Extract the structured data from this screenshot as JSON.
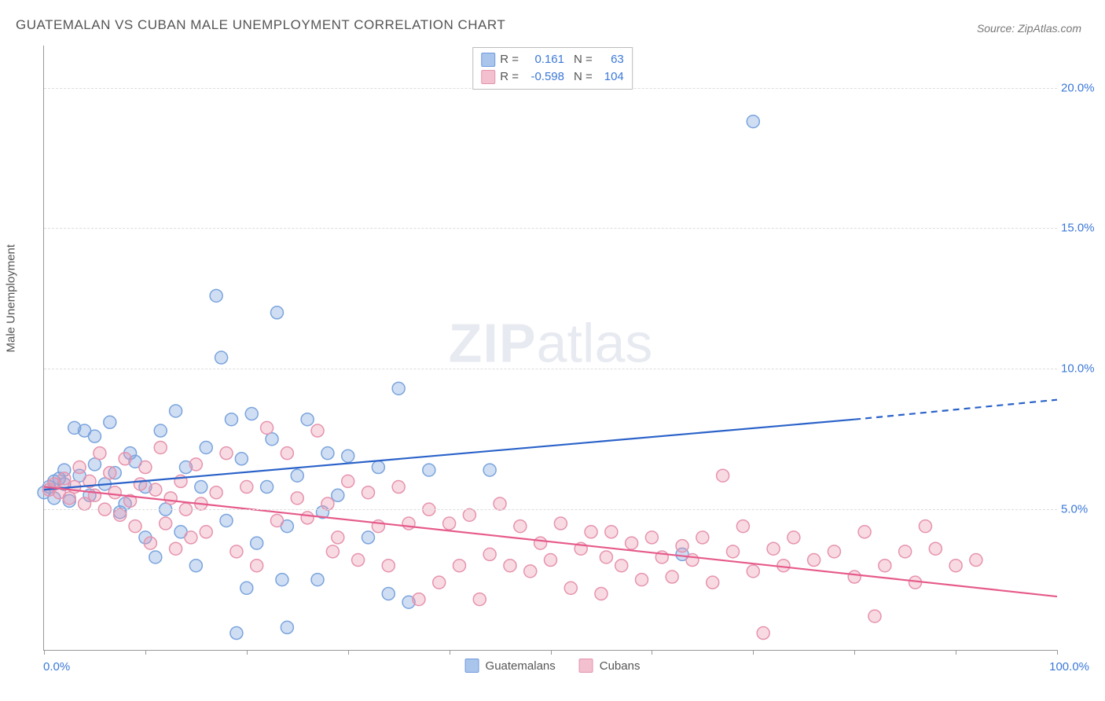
{
  "title": "GUATEMALAN VS CUBAN MALE UNEMPLOYMENT CORRELATION CHART",
  "source": "Source: ZipAtlas.com",
  "watermark_zip": "ZIP",
  "watermark_atlas": "atlas",
  "y_axis_title": "Male Unemployment",
  "chart": {
    "type": "scatter",
    "xlim": [
      0,
      100
    ],
    "ylim": [
      0,
      21.5
    ],
    "x_tick_positions": [
      0,
      10,
      20,
      30,
      40,
      50,
      60,
      70,
      80,
      90,
      100
    ],
    "x_min_label": "0.0%",
    "x_max_label": "100.0%",
    "y_ticks": [
      {
        "v": 5.0,
        "label": "5.0%"
      },
      {
        "v": 10.0,
        "label": "10.0%"
      },
      {
        "v": 15.0,
        "label": "15.0%"
      },
      {
        "v": 20.0,
        "label": "20.0%"
      }
    ],
    "grid_color": "#dddddd",
    "background_color": "#ffffff",
    "axis_color": "#999999",
    "marker_radius": 8,
    "marker_stroke_width": 1.5,
    "line_width": 2.2,
    "series": [
      {
        "name": "Guatemalans",
        "fill": "rgba(120,160,220,0.35)",
        "stroke": "#7aa4dd",
        "swatch_fill": "#a9c5eb",
        "swatch_stroke": "#6f9add",
        "line_color": "#2a62c9",
        "R": "0.161",
        "N": "63",
        "trend": {
          "x1": 0,
          "y1": 5.7,
          "x2_solid": 80,
          "y2_solid": 8.2,
          "x2_dash": 100,
          "y2_dash": 8.9
        },
        "points": [
          [
            0,
            5.6
          ],
          [
            0.5,
            5.8
          ],
          [
            1,
            6.0
          ],
          [
            1,
            5.4
          ],
          [
            1.5,
            6.1
          ],
          [
            2,
            5.9
          ],
          [
            2,
            6.4
          ],
          [
            2.5,
            5.3
          ],
          [
            3,
            7.9
          ],
          [
            3.5,
            6.2
          ],
          [
            4,
            7.8
          ],
          [
            4.5,
            5.5
          ],
          [
            5,
            6.6
          ],
          [
            5,
            7.6
          ],
          [
            6,
            5.9
          ],
          [
            6.5,
            8.1
          ],
          [
            7,
            6.3
          ],
          [
            7.5,
            4.9
          ],
          [
            8,
            5.2
          ],
          [
            8.5,
            7.0
          ],
          [
            9,
            6.7
          ],
          [
            10,
            4.0
          ],
          [
            10,
            5.8
          ],
          [
            11,
            3.3
          ],
          [
            11.5,
            7.8
          ],
          [
            12,
            5.0
          ],
          [
            13,
            8.5
          ],
          [
            13.5,
            4.2
          ],
          [
            14,
            6.5
          ],
          [
            15,
            3.0
          ],
          [
            15.5,
            5.8
          ],
          [
            16,
            7.2
          ],
          [
            17,
            12.6
          ],
          [
            17.5,
            10.4
          ],
          [
            18,
            4.6
          ],
          [
            18.5,
            8.2
          ],
          [
            19,
            0.6
          ],
          [
            19.5,
            6.8
          ],
          [
            20,
            2.2
          ],
          [
            20.5,
            8.4
          ],
          [
            21,
            3.8
          ],
          [
            22,
            5.8
          ],
          [
            22.5,
            7.5
          ],
          [
            23,
            12.0
          ],
          [
            23.5,
            2.5
          ],
          [
            24,
            4.4
          ],
          [
            24,
            0.8
          ],
          [
            25,
            6.2
          ],
          [
            26,
            8.2
          ],
          [
            27,
            2.5
          ],
          [
            27.5,
            4.9
          ],
          [
            28,
            7.0
          ],
          [
            29,
            5.5
          ],
          [
            30,
            6.9
          ],
          [
            32,
            4.0
          ],
          [
            33,
            6.5
          ],
          [
            34,
            2.0
          ],
          [
            35,
            9.3
          ],
          [
            36,
            1.7
          ],
          [
            38,
            6.4
          ],
          [
            44,
            6.4
          ],
          [
            63,
            3.4
          ],
          [
            70,
            18.8
          ]
        ]
      },
      {
        "name": "Cubans",
        "fill": "rgba(235,150,175,0.35)",
        "stroke": "#e693ad",
        "swatch_fill": "#f3c0cf",
        "swatch_stroke": "#e394ad",
        "line_color": "#e65a8a",
        "R": "-0.598",
        "N": "104",
        "trend": {
          "x1": 0,
          "y1": 5.8,
          "x2_solid": 100,
          "y2_solid": 1.9,
          "x2_dash": 100,
          "y2_dash": 1.9
        },
        "points": [
          [
            0.5,
            5.7
          ],
          [
            1,
            5.9
          ],
          [
            1.5,
            5.6
          ],
          [
            2,
            6.1
          ],
          [
            2.5,
            5.4
          ],
          [
            3,
            5.8
          ],
          [
            3.5,
            6.5
          ],
          [
            4,
            5.2
          ],
          [
            4.5,
            6.0
          ],
          [
            5,
            5.5
          ],
          [
            5.5,
            7.0
          ],
          [
            6,
            5.0
          ],
          [
            6.5,
            6.3
          ],
          [
            7,
            5.6
          ],
          [
            7.5,
            4.8
          ],
          [
            8,
            6.8
          ],
          [
            8.5,
            5.3
          ],
          [
            9,
            4.4
          ],
          [
            9.5,
            5.9
          ],
          [
            10,
            6.5
          ],
          [
            10.5,
            3.8
          ],
          [
            11,
            5.7
          ],
          [
            11.5,
            7.2
          ],
          [
            12,
            4.5
          ],
          [
            12.5,
            5.4
          ],
          [
            13,
            3.6
          ],
          [
            13.5,
            6.0
          ],
          [
            14,
            5.0
          ],
          [
            14.5,
            4.0
          ],
          [
            15,
            6.6
          ],
          [
            15.5,
            5.2
          ],
          [
            16,
            4.2
          ],
          [
            17,
            5.6
          ],
          [
            18,
            7.0
          ],
          [
            19,
            3.5
          ],
          [
            20,
            5.8
          ],
          [
            21,
            3.0
          ],
          [
            22,
            7.9
          ],
          [
            23,
            4.6
          ],
          [
            24,
            7.0
          ],
          [
            25,
            5.4
          ],
          [
            26,
            4.7
          ],
          [
            27,
            7.8
          ],
          [
            28,
            5.2
          ],
          [
            28.5,
            3.5
          ],
          [
            29,
            4.0
          ],
          [
            30,
            6.0
          ],
          [
            31,
            3.2
          ],
          [
            32,
            5.6
          ],
          [
            33,
            4.4
          ],
          [
            34,
            3.0
          ],
          [
            35,
            5.8
          ],
          [
            36,
            4.5
          ],
          [
            37,
            1.8
          ],
          [
            38,
            5.0
          ],
          [
            39,
            2.4
          ],
          [
            40,
            4.5
          ],
          [
            41,
            3.0
          ],
          [
            42,
            4.8
          ],
          [
            43,
            1.8
          ],
          [
            44,
            3.4
          ],
          [
            45,
            5.2
          ],
          [
            46,
            3.0
          ],
          [
            47,
            4.4
          ],
          [
            48,
            2.8
          ],
          [
            49,
            3.8
          ],
          [
            50,
            3.2
          ],
          [
            51,
            4.5
          ],
          [
            52,
            2.2
          ],
          [
            53,
            3.6
          ],
          [
            54,
            4.2
          ],
          [
            55,
            2.0
          ],
          [
            55.5,
            3.3
          ],
          [
            56,
            4.2
          ],
          [
            57,
            3.0
          ],
          [
            58,
            3.8
          ],
          [
            59,
            2.5
          ],
          [
            60,
            4.0
          ],
          [
            61,
            3.3
          ],
          [
            62,
            2.6
          ],
          [
            63,
            3.7
          ],
          [
            64,
            3.2
          ],
          [
            65,
            4.0
          ],
          [
            66,
            2.4
          ],
          [
            67,
            6.2
          ],
          [
            68,
            3.5
          ],
          [
            69,
            4.4
          ],
          [
            70,
            2.8
          ],
          [
            71,
            0.6
          ],
          [
            72,
            3.6
          ],
          [
            73,
            3.0
          ],
          [
            74,
            4.0
          ],
          [
            76,
            3.2
          ],
          [
            78,
            3.5
          ],
          [
            80,
            2.6
          ],
          [
            81,
            4.2
          ],
          [
            82,
            1.2
          ],
          [
            83,
            3.0
          ],
          [
            85,
            3.5
          ],
          [
            86,
            2.4
          ],
          [
            87,
            4.4
          ],
          [
            88,
            3.6
          ],
          [
            90,
            3.0
          ],
          [
            92,
            3.2
          ]
        ]
      }
    ]
  },
  "stats_labels": {
    "R": "R =",
    "N": "N ="
  },
  "legend": {
    "a": "Guatemalans",
    "b": "Cubans"
  }
}
